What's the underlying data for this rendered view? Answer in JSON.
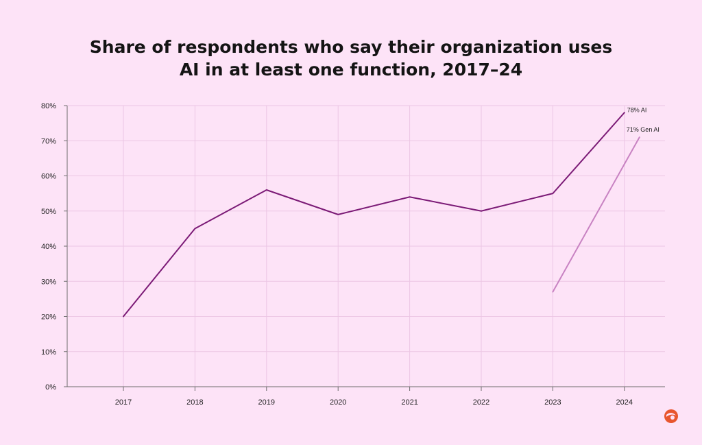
{
  "title_lines": [
    "Share of respondents who say their organization uses",
    "AI in at least one function, 2017–24"
  ],
  "chart_data": {
    "type": "line",
    "title": "Share of respondents who say their organization uses AI in at least one function, 2017–24",
    "xlabel": "",
    "ylabel": "",
    "categories": [
      "2017",
      "2018",
      "2019",
      "2020",
      "2021",
      "2022",
      "2023",
      "2024"
    ],
    "ylim": [
      0,
      80
    ],
    "yticks": [
      0,
      10,
      20,
      30,
      40,
      50,
      60,
      70,
      80
    ],
    "ytick_labels": [
      "0%",
      "10%",
      "20%",
      "30%",
      "40%",
      "50%",
      "60%",
      "70%",
      "80%"
    ],
    "grid": true,
    "series": [
      {
        "values": [
          20,
          45,
          56,
          49,
          54,
          50,
          55,
          78
        ],
        "color": "#7b1a76",
        "end_label": "78% AI"
      },
      {
        "values": [
          null,
          null,
          null,
          null,
          null,
          null,
          27,
          71
        ],
        "color": "#c882c2",
        "end_label": "71% Gen AI"
      }
    ]
  },
  "colors": {
    "background": "#fde3f7",
    "grid": "#ecc6e4",
    "axis": "#6e6e6e",
    "logo": "#e8562e"
  },
  "logo_icon": "circle-logo-icon"
}
